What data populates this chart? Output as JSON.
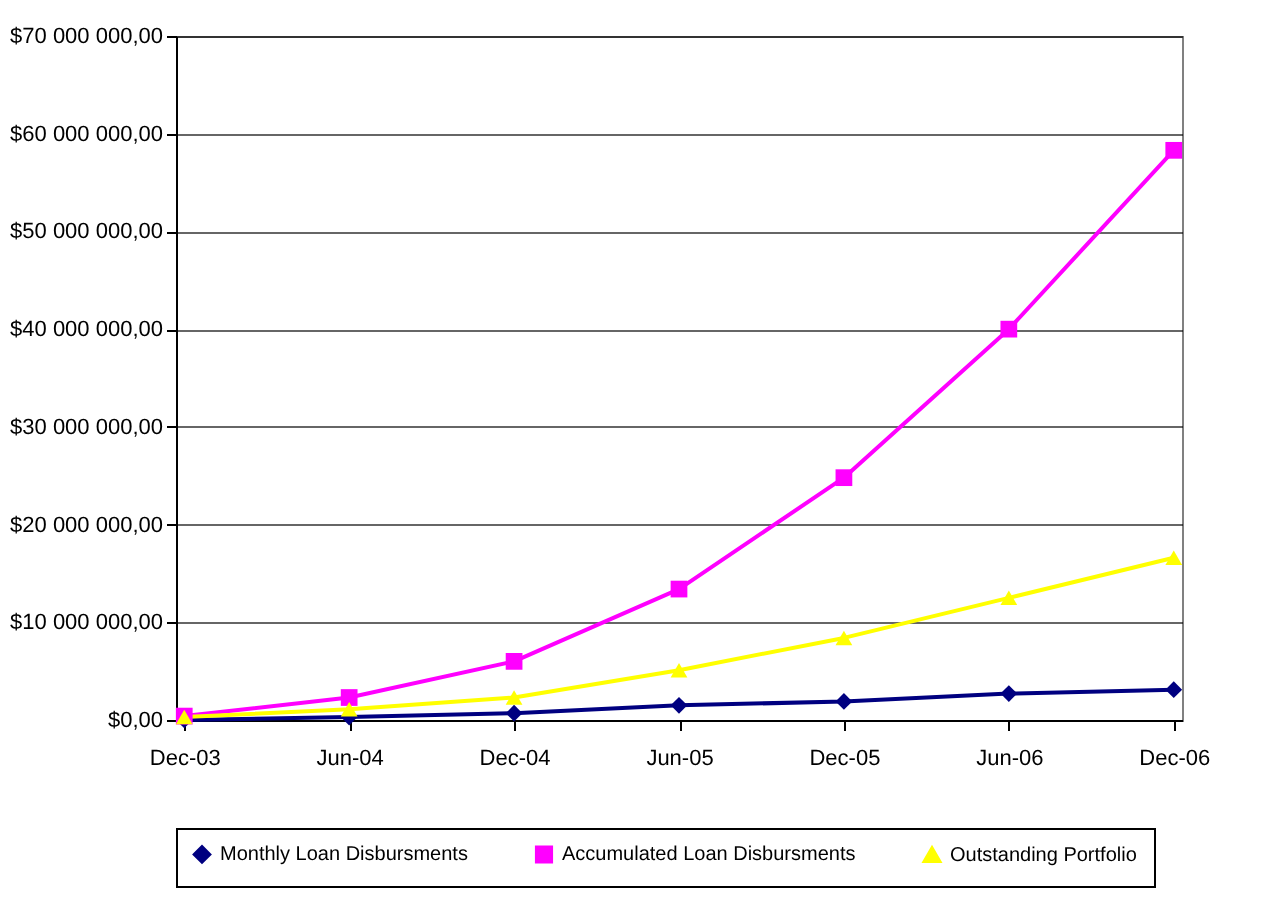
{
  "chart_data": {
    "type": "line",
    "categories": [
      "Dec-03",
      "Jun-04",
      "Dec-04",
      "Jun-05",
      "Dec-05",
      "Jun-06",
      "Dec-06"
    ],
    "series": [
      {
        "name": "Monthly Loan Disbursments",
        "color": "#000080",
        "marker": "diamond",
        "values": [
          0,
          300000,
          700000,
          1500000,
          1900000,
          2700000,
          3100000
        ]
      },
      {
        "name": "Accumulated Loan Disbursments",
        "color": "#ff00ff",
        "marker": "square",
        "values": [
          400000,
          2300000,
          6000000,
          13400000,
          24800000,
          40000000,
          58300000
        ]
      },
      {
        "name": "Outstanding Portfolio",
        "color": "#ffff00",
        "marker": "triangle",
        "values": [
          300000,
          1100000,
          2300000,
          5100000,
          8400000,
          12500000,
          16600000
        ]
      }
    ],
    "ylim": [
      0,
      70000000
    ],
    "yticks": [
      {
        "value": 0,
        "label": "$0,00"
      },
      {
        "value": 10000000,
        "label": "$10 000 000,00"
      },
      {
        "value": 20000000,
        "label": "$20 000 000,00"
      },
      {
        "value": 30000000,
        "label": "$30 000 000,00"
      },
      {
        "value": 40000000,
        "label": "$40 000 000,00"
      },
      {
        "value": 50000000,
        "label": "$50 000 000,00"
      },
      {
        "value": 60000000,
        "label": "$60 000 000,00"
      },
      {
        "value": 70000000,
        "label": "$70 000 000,00"
      }
    ],
    "grid": "y",
    "legend": "bottom",
    "line_style": "solid"
  }
}
